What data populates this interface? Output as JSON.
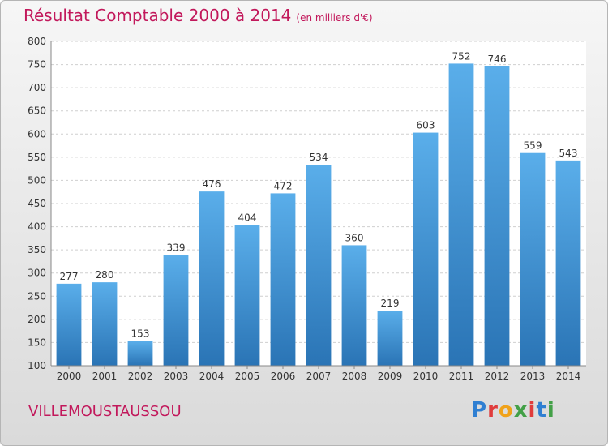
{
  "header": {
    "title": "Résultat Comptable 2000 à 2014",
    "unit": "(en milliers d'€)"
  },
  "footer": {
    "town": "VILLEMOUSTAUSSOU",
    "logo": [
      "P",
      "r",
      "o",
      "x",
      "i",
      "t",
      "i"
    ]
  },
  "colors": {
    "title": "#c2185b",
    "bar_top": "#5aaeea",
    "bar_bottom": "#2a74b5",
    "logo": [
      "#2f7fd2",
      "#e03c3c",
      "#f0a21a",
      "#43a047",
      "#e03c3c",
      "#2f7fd2",
      "#43a047"
    ]
  },
  "chart_data": {
    "type": "bar",
    "categories": [
      "2000",
      "2001",
      "2002",
      "2003",
      "2004",
      "2005",
      "2006",
      "2007",
      "2008",
      "2009",
      "2010",
      "2011",
      "2012",
      "2013",
      "2014"
    ],
    "values": [
      277,
      280,
      153,
      339,
      476,
      404,
      472,
      534,
      360,
      219,
      603,
      752,
      746,
      559,
      543
    ],
    "ylim": [
      100,
      800
    ],
    "yticks": [
      100,
      150,
      200,
      250,
      300,
      350,
      400,
      450,
      500,
      550,
      600,
      650,
      700,
      750,
      800
    ],
    "grid": true,
    "data_labels": true
  }
}
